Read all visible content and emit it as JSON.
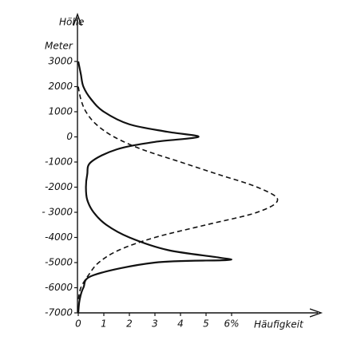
{
  "chart_data": {
    "type": "line",
    "y_label": "Höhe",
    "y_unit": "Meter",
    "x_label": "Häufigkeit",
    "ylim": [
      -7000,
      3000
    ],
    "xlim": [
      0,
      6
    ],
    "yticks": [
      3000,
      2000,
      1000,
      0,
      -1000,
      -2000,
      {
        "value": -3000,
        "label": "- 3000"
      },
      -4000,
      -5000,
      -6000,
      -7000
    ],
    "xticks": [
      0,
      1,
      2,
      3,
      4,
      5,
      {
        "value": 6,
        "label": "6%"
      }
    ],
    "series": [
      {
        "style": "solid",
        "color": "#111111",
        "y": [
          3000,
          2500,
          2000,
          1500,
          1000,
          500,
          200,
          0,
          -200,
          -500,
          -1000,
          -1500,
          -2000,
          -2500,
          -3000,
          -3500,
          -4000,
          -4500,
          -4800,
          -4900,
          -5000,
          -5500,
          -6000,
          -6500,
          -7000
        ],
        "values": [
          0,
          0.1,
          0.2,
          0.5,
          1.0,
          2.0,
          3.5,
          4.7,
          3.0,
          1.5,
          0.5,
          0.35,
          0.3,
          0.35,
          0.6,
          1.1,
          2.0,
          3.5,
          5.5,
          5.8,
          3.0,
          0.6,
          0.2,
          0.05,
          0
        ]
      },
      {
        "style": "dashed",
        "color": "#111111",
        "y": [
          2000,
          1500,
          1000,
          500,
          0,
          -500,
          -1000,
          -1500,
          -2000,
          -2500,
          -3000,
          -3500,
          -4000,
          -4500,
          -5000,
          -5500,
          -6000,
          -6500
        ],
        "values": [
          0,
          0.1,
          0.3,
          0.7,
          1.4,
          2.5,
          4.0,
          5.5,
          7.0,
          7.8,
          7.0,
          5.0,
          3.0,
          1.6,
          0.8,
          0.4,
          0.1,
          0
        ]
      }
    ]
  }
}
